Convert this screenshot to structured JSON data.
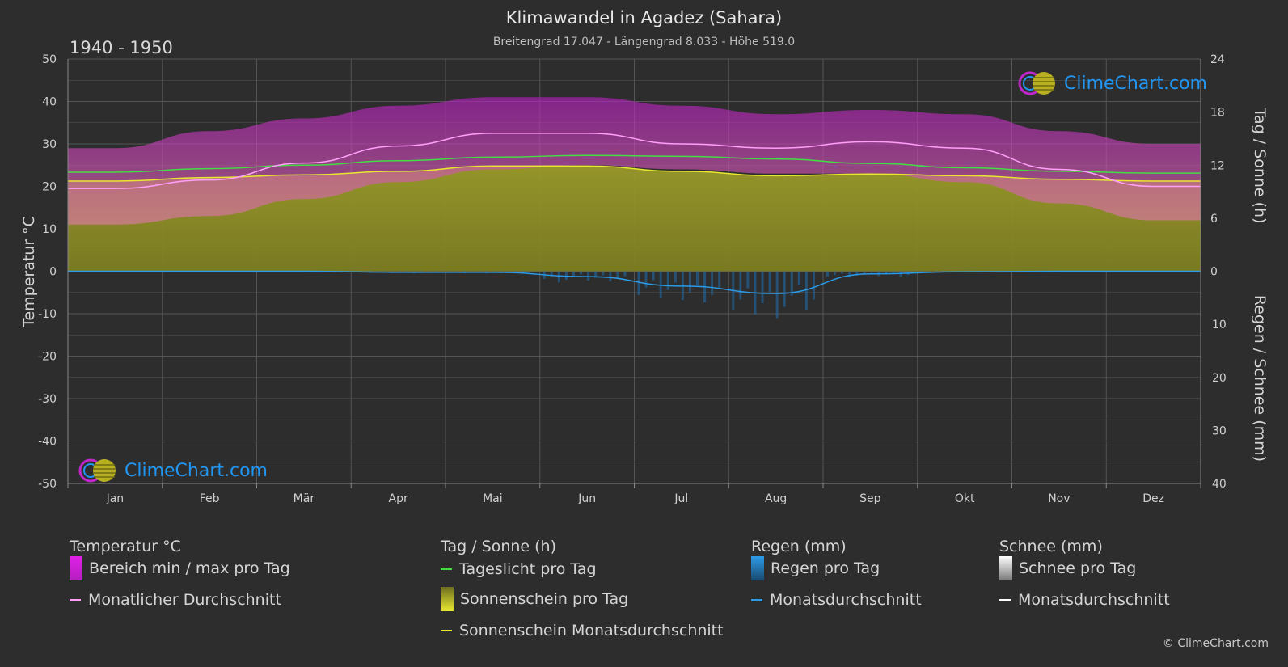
{
  "header": {
    "title": "Klimawandel in Agadez (Sahara)",
    "subtitle": "Breitengrad 17.047 - Längengrad 8.033 - Höhe 519.0",
    "period": "1940 - 1950"
  },
  "branding": {
    "logo_text": "ClimeChart.com",
    "copyright": "© ClimeChart.com"
  },
  "colors": {
    "background": "#2d2d2d",
    "grid": "#555555",
    "temp_range": "#c026c9",
    "temp_range_low": "#e58fb0",
    "temp_avg": "#ff9ff8",
    "daylight": "#44dd44",
    "sunshine_fill": "#8c8c28",
    "sunshine_avg": "#e8e830",
    "rain_bar": "#1f6fb0",
    "rain_avg": "#2b9be8",
    "logo_blue": "#2196f3"
  },
  "chart_data": {
    "type": "line",
    "title": "Klimawandel in Agadez (Sahara)",
    "categories": [
      "Jan",
      "Feb",
      "Mär",
      "Apr",
      "Mai",
      "Jun",
      "Jul",
      "Aug",
      "Sep",
      "Okt",
      "Nov",
      "Dez"
    ],
    "axes": {
      "left": {
        "label": "Temperatur °C",
        "range": [
          -50,
          50
        ],
        "ticks": [
          50,
          40,
          30,
          20,
          10,
          0,
          -10,
          -20,
          -30,
          -40,
          -50
        ]
      },
      "right_top": {
        "label": "Tag / Sonne (h)",
        "range": [
          0,
          24
        ],
        "ticks": [
          24,
          18,
          12,
          6,
          0
        ]
      },
      "right_bottom": {
        "label": "Regen / Schnee (mm)",
        "range": [
          0,
          40
        ],
        "ticks": [
          0,
          10,
          20,
          30,
          40
        ]
      }
    },
    "grid": true,
    "series": [
      {
        "name": "Monatlicher Durchschnitt",
        "unit": "°C",
        "values": [
          19.5,
          21.5,
          25.5,
          29.5,
          32.5,
          32.5,
          30.0,
          29.0,
          30.5,
          29.0,
          24.0,
          20.0
        ]
      },
      {
        "name": "Bereich min / max pro Tag (max)",
        "unit": "°C",
        "values": [
          29,
          33,
          36,
          39,
          41,
          41,
          39,
          37,
          38,
          37,
          33,
          30
        ]
      },
      {
        "name": "Bereich min / max pro Tag (min)",
        "unit": "°C",
        "values": [
          11,
          13,
          17,
          21,
          24,
          25,
          24,
          23,
          23,
          21,
          16,
          12
        ]
      },
      {
        "name": "Tageslicht pro Tag",
        "unit": "h",
        "values": [
          11.2,
          11.6,
          12.0,
          12.5,
          12.9,
          13.1,
          13.0,
          12.7,
          12.2,
          11.7,
          11.3,
          11.1
        ]
      },
      {
        "name": "Sonnenschein Monatsdurchschnitt",
        "unit": "h",
        "values": [
          10.2,
          10.6,
          10.9,
          11.3,
          11.9,
          11.9,
          11.3,
          10.8,
          11.0,
          10.8,
          10.4,
          10.2
        ]
      },
      {
        "name": "Monatsdurchschnitt (Regen)",
        "unit": "mm",
        "values": [
          0.0,
          0.0,
          0.0,
          0.2,
          0.2,
          1.0,
          2.8,
          4.2,
          0.5,
          0.1,
          0.0,
          0.0
        ]
      }
    ]
  },
  "legend": {
    "temperature": {
      "heading": "Temperatur °C",
      "range_label": "Bereich min / max pro Tag",
      "avg_label": "Monatlicher Durchschnitt"
    },
    "sun": {
      "heading": "Tag / Sonne (h)",
      "daylight_label": "Tageslicht pro Tag",
      "sunshine_label": "Sonnenschein pro Tag",
      "sunshine_avg_label": "Sonnenschein Monatsdurchschnitt"
    },
    "rain": {
      "heading": "Regen (mm)",
      "per_day_label": "Regen pro Tag",
      "avg_label": "Monatsdurchschnitt"
    },
    "snow": {
      "heading": "Schnee (mm)",
      "per_day_label": "Schnee pro Tag",
      "avg_label": "Monatsdurchschnitt"
    }
  }
}
